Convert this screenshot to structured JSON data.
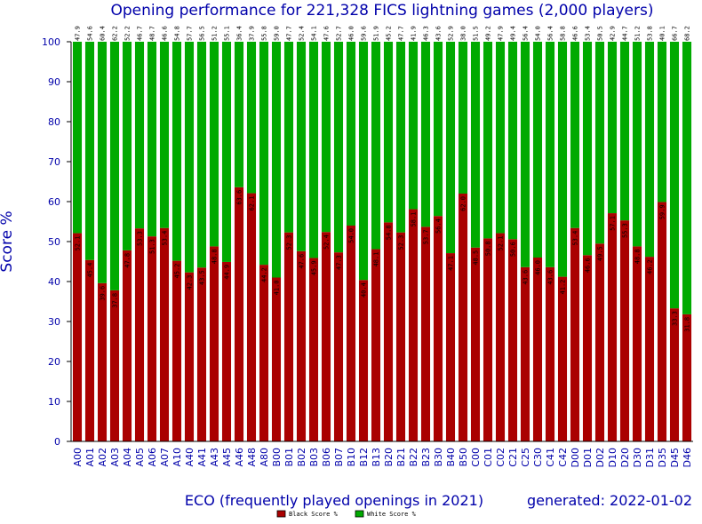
{
  "chart_data": {
    "type": "bar",
    "stacked": true,
    "title": "Opening performance for 221,328 FICS lightning games (2,000 players)",
    "xlabel": "ECO (frequently played openings in 2021)",
    "ylabel": "Score %",
    "generated": "generated: 2022-01-02",
    "ylim": [
      0,
      100
    ],
    "yticks": [
      0,
      10,
      20,
      30,
      40,
      50,
      60,
      70,
      80,
      90,
      100
    ],
    "grid": false,
    "legend_position": "bottom-center",
    "categories": [
      "A00",
      "A01",
      "A02",
      "A03",
      "A04",
      "A05",
      "A06",
      "A07",
      "A10",
      "A40",
      "A41",
      "A43",
      "A45",
      "A46",
      "A48",
      "A80",
      "B00",
      "B01",
      "B02",
      "B03",
      "B06",
      "B07",
      "B10",
      "B12",
      "B13",
      "B20",
      "B21",
      "B22",
      "B23",
      "B30",
      "B40",
      "B50",
      "C00",
      "C01",
      "C02",
      "C21",
      "C25",
      "C30",
      "C41",
      "C42",
      "D00",
      "D01",
      "D02",
      "D10",
      "D20",
      "D30",
      "D31",
      "D35",
      "D45",
      "D46"
    ],
    "series": [
      {
        "name": "Black Score %",
        "color": "#aa0000",
        "values": [
          52.1,
          45.4,
          39.6,
          37.8,
          47.8,
          53.3,
          51.3,
          53.4,
          45.2,
          42.3,
          43.5,
          48.8,
          44.9,
          63.6,
          62.1,
          44.2,
          41.0,
          52.3,
          47.6,
          45.9,
          52.4,
          47.3,
          54.0,
          40.4,
          48.1,
          54.8,
          52.3,
          58.1,
          53.7,
          56.4,
          47.1,
          62.0,
          48.5,
          50.8,
          52.1,
          50.6,
          43.6,
          46.0,
          43.6,
          41.2,
          53.4,
          46.6,
          49.5,
          57.1,
          55.3,
          48.8,
          46.2,
          59.9,
          33.3,
          31.8
        ]
      },
      {
        "name": "White Score %",
        "color": "#00aa00",
        "values": [
          47.9,
          54.6,
          60.4,
          62.2,
          52.2,
          46.7,
          48.7,
          46.6,
          54.8,
          57.7,
          56.5,
          51.2,
          55.1,
          36.4,
          37.9,
          55.8,
          59.0,
          47.7,
          52.4,
          54.1,
          47.6,
          52.7,
          46.0,
          59.6,
          51.9,
          45.2,
          47.7,
          41.9,
          46.3,
          43.6,
          52.9,
          38.0,
          51.5,
          49.2,
          47.9,
          49.4,
          56.4,
          54.0,
          56.4,
          58.8,
          46.6,
          53.4,
          50.5,
          42.9,
          44.7,
          51.2,
          53.8,
          40.1,
          66.7,
          68.2
        ]
      }
    ]
  }
}
